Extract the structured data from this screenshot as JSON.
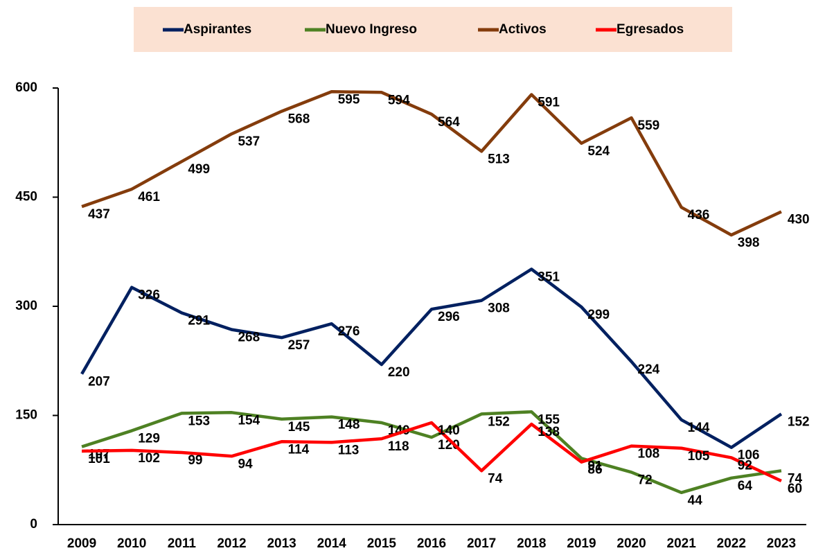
{
  "chart_data": {
    "type": "line",
    "categories": [
      "2009",
      "2010",
      "2011",
      "2012",
      "2013",
      "2014",
      "2015",
      "2016",
      "2017",
      "2018",
      "2019",
      "2020",
      "2021",
      "2022",
      "2023"
    ],
    "series": [
      {
        "name": "Aspirantes",
        "color": "#002060",
        "values": [
          207,
          326,
          291,
          268,
          257,
          276,
          220,
          296,
          308,
          351,
          299,
          224,
          144,
          106,
          152
        ]
      },
      {
        "name": "Nuevo Ingreso",
        "color": "#4e8123",
        "values": [
          107,
          129,
          153,
          154,
          145,
          148,
          140,
          120,
          152,
          155,
          91,
          72,
          44,
          64,
          74
        ]
      },
      {
        "name": "Activos",
        "color": "#843c0c",
        "values": [
          437,
          461,
          499,
          537,
          568,
          595,
          594,
          564,
          513,
          591,
          524,
          559,
          436,
          398,
          430
        ]
      },
      {
        "name": "Egresados",
        "color": "#ff0000",
        "values": [
          101,
          102,
          99,
          94,
          114,
          113,
          118,
          140,
          74,
          138,
          86,
          108,
          105,
          92,
          60
        ]
      }
    ],
    "ylim": [
      0,
      600
    ],
    "yticks": [
      0,
      150,
      300,
      450,
      600
    ],
    "grid": false,
    "legend": "top"
  }
}
